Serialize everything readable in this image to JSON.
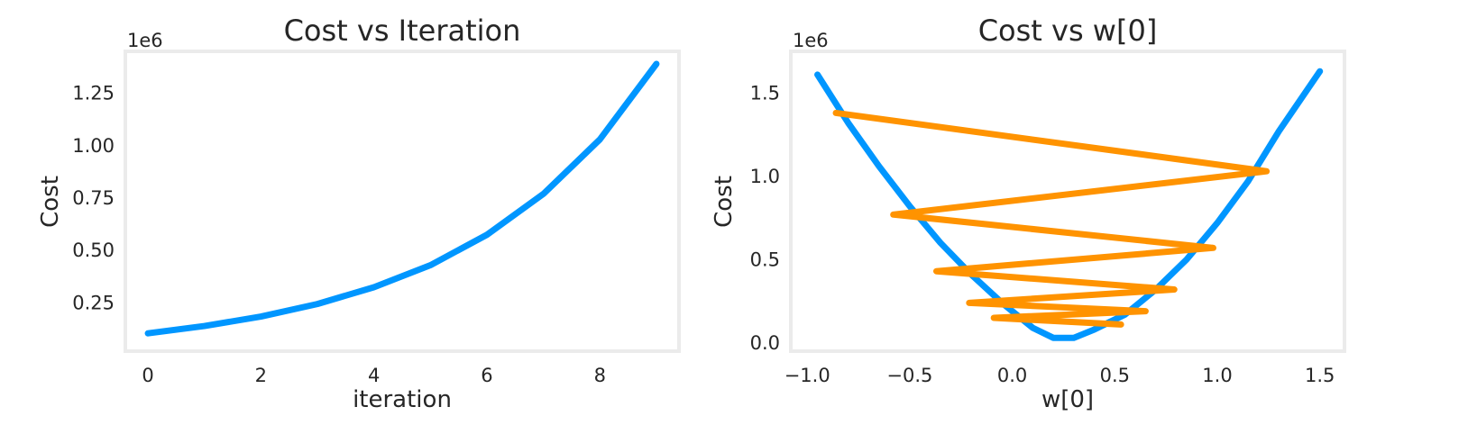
{
  "chart_data": [
    {
      "type": "line",
      "title": "Cost vs Iteration",
      "xlabel": "iteration",
      "ylabel": "Cost",
      "y_offset_label": "1e6",
      "xlim": [
        -0.4,
        9.4
      ],
      "ylim": [
        0.02,
        1.45
      ],
      "xticks": [
        0,
        2,
        4,
        6,
        8
      ],
      "xtick_labels": [
        "0",
        "2",
        "4",
        "6",
        "8"
      ],
      "yticks": [
        0.25,
        0.5,
        0.75,
        1.0,
        1.25
      ],
      "ytick_labels": [
        "0.25",
        "0.50",
        "0.75",
        "1.00",
        "1.25"
      ],
      "grid": false,
      "series": [
        {
          "color": "#0096ff",
          "x": [
            0,
            1,
            2,
            3,
            4,
            5,
            6,
            7,
            8,
            9
          ],
          "y": [
            0.105,
            0.14,
            0.185,
            0.245,
            0.325,
            0.43,
            0.575,
            0.77,
            1.03,
            1.39
          ]
        }
      ]
    },
    {
      "type": "line",
      "title": "Cost vs w[0]",
      "xlabel": "w[0]",
      "ylabel": "Cost",
      "y_offset_label": "1e6",
      "xlim": [
        -1.08,
        1.62
      ],
      "ylim": [
        -0.05,
        1.75
      ],
      "xticks": [
        -1.0,
        -0.5,
        0.0,
        0.5,
        1.0,
        1.5
      ],
      "xtick_labels": [
        "−1.0",
        "−0.5",
        "0.0",
        "0.5",
        "1.0",
        "1.5"
      ],
      "yticks": [
        0.0,
        0.5,
        1.0,
        1.5
      ],
      "ytick_labels": [
        "0.0",
        "0.5",
        "1.0",
        "1.5"
      ],
      "grid": false,
      "series": [
        {
          "role": "cost-curve",
          "color": "#0096ff",
          "x": [
            -0.95,
            -0.8,
            -0.65,
            -0.5,
            -0.35,
            -0.2,
            -0.05,
            0.1,
            0.2,
            0.3,
            0.4,
            0.55,
            0.7,
            0.85,
            1.0,
            1.15,
            1.3,
            1.5
          ],
          "y": [
            1.61,
            1.32,
            1.06,
            0.82,
            0.6,
            0.41,
            0.24,
            0.09,
            0.03,
            0.03,
            0.08,
            0.17,
            0.32,
            0.5,
            0.72,
            0.97,
            1.27,
            1.63
          ]
        },
        {
          "role": "descent-path",
          "color": "#ff9300",
          "x": [
            -0.86,
            1.24,
            -0.58,
            0.98,
            -0.37,
            0.79,
            -0.21,
            0.65,
            -0.09,
            0.53
          ],
          "y": [
            1.38,
            1.03,
            0.77,
            0.57,
            0.43,
            0.32,
            0.24,
            0.19,
            0.15,
            0.11
          ]
        }
      ]
    }
  ]
}
